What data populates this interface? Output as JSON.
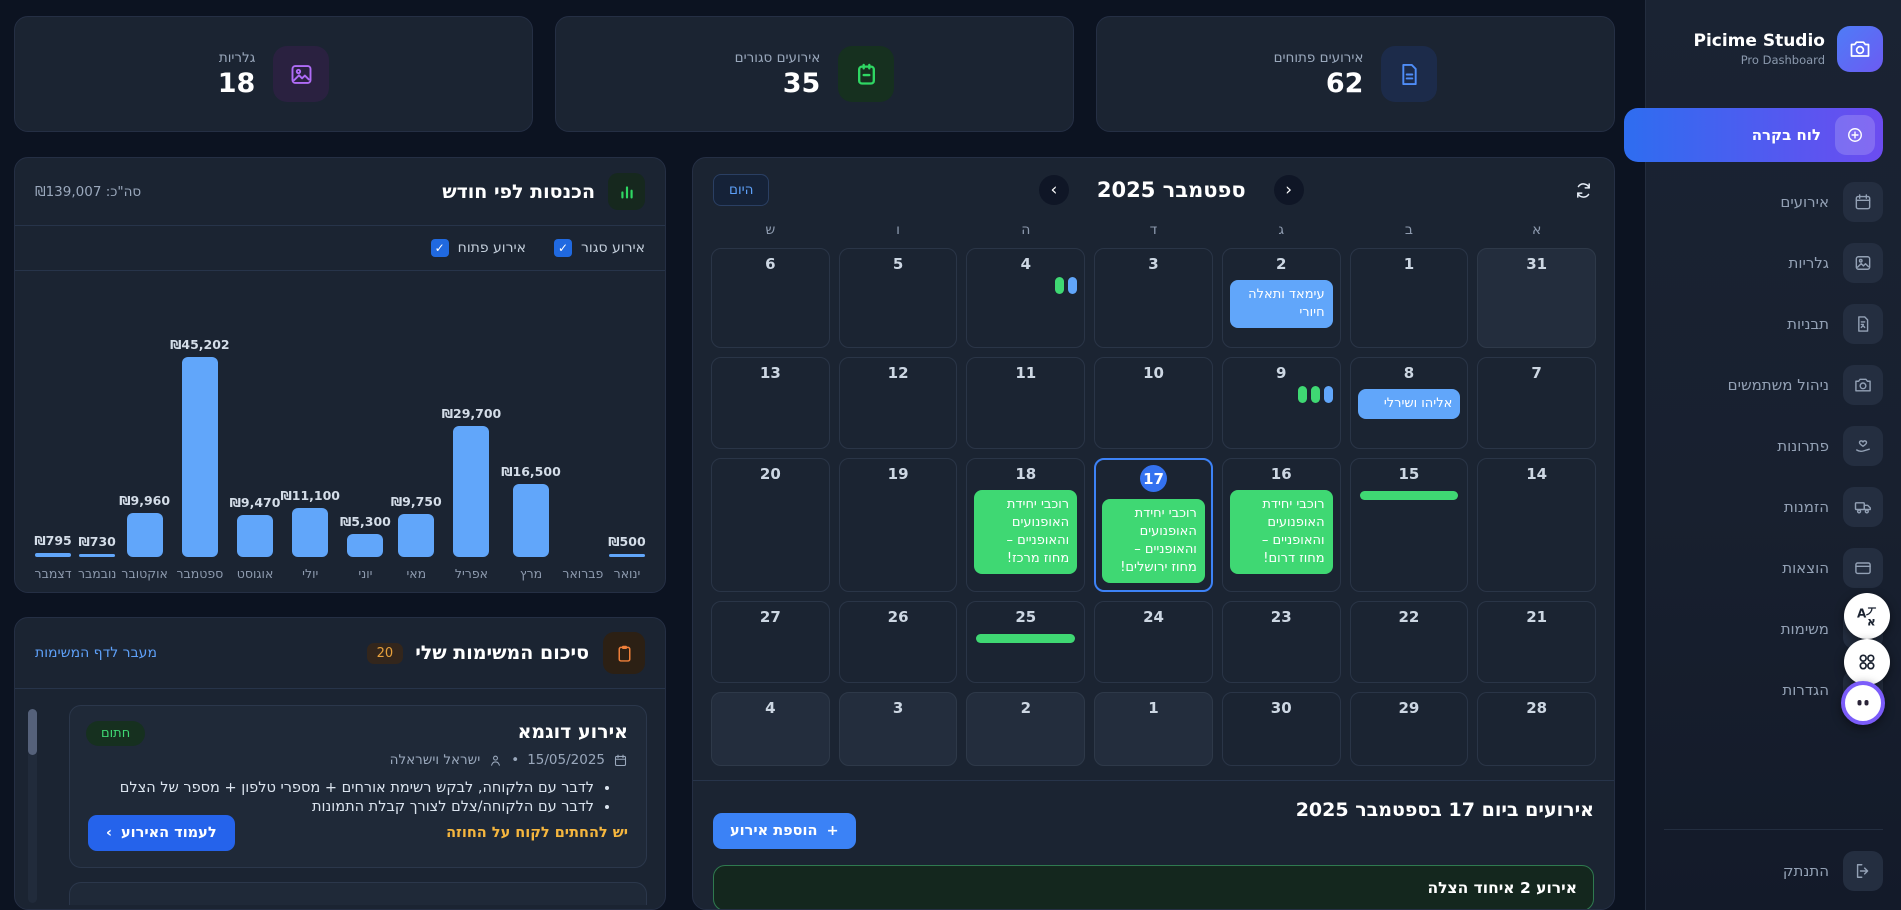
{
  "app": {
    "title": "Picime Studio",
    "subtitle": "Pro Dashboard"
  },
  "stats": [
    {
      "key": "open-events",
      "label": "אירועים פתוחים",
      "value": "62",
      "icon": "document",
      "color": "blue"
    },
    {
      "key": "closed-events",
      "label": "אירועים סגורים",
      "value": "35",
      "icon": "calendarMinus",
      "color": "green"
    },
    {
      "key": "galleries",
      "label": "גלריות",
      "value": "18",
      "icon": "gallery",
      "color": "purple"
    }
  ],
  "chart_data": {
    "type": "bar",
    "title": "הכנסות לפי חודש",
    "total_label": "סה\"כ: ₪139,007",
    "categories": [
      "ינואר",
      "פברואר",
      "מרץ",
      "אפריל",
      "מאי",
      "יוני",
      "יולי",
      "אוגוסט",
      "ספטמבר",
      "אוקטובר",
      "נובמבר",
      "דצמבר"
    ],
    "values": [
      500,
      0,
      16500,
      29700,
      9750,
      5300,
      11100,
      9470,
      45202,
      9960,
      730,
      795
    ],
    "value_labels": [
      "₪500",
      "",
      "₪16,500",
      "₪29,700",
      "₪9,750",
      "₪5,300",
      "₪11,100",
      "₪9,470",
      "₪45,202",
      "₪9,960",
      "₪730",
      "₪795"
    ],
    "ylim": [
      0,
      45202
    ],
    "bar_color": "#61a6fa",
    "xlabel": "",
    "ylabel": "",
    "legend_position": "none",
    "filters": [
      {
        "label": "אירוע סגור",
        "checked": true
      },
      {
        "label": "אירוע פתוח",
        "checked": true
      }
    ]
  },
  "calendar": {
    "today_label": "היום",
    "month_title": "ספטמבר 2025",
    "weekdays": [
      "א",
      "ב",
      "ג",
      "ד",
      "ה",
      "ו",
      "ש"
    ],
    "weeks": [
      [
        {
          "day": "31",
          "muted": true
        },
        {
          "day": "1"
        },
        {
          "day": "2",
          "events": [
            {
              "label": "עימאד ותאלה חיורי",
              "color": "blue"
            }
          ]
        },
        {
          "day": "3"
        },
        {
          "day": "4",
          "dots": [
            "green",
            "blue"
          ]
        },
        {
          "day": "5"
        },
        {
          "day": "6"
        }
      ],
      [
        {
          "day": "7"
        },
        {
          "day": "8",
          "events": [
            {
              "label": "אליהו ושירלי",
              "color": "blue"
            }
          ]
        },
        {
          "day": "9",
          "dots": [
            "green",
            "green",
            "blue"
          ]
        },
        {
          "day": "10"
        },
        {
          "day": "11"
        },
        {
          "day": "12"
        },
        {
          "day": "13"
        }
      ],
      [
        {
          "day": "14"
        },
        {
          "day": "15",
          "bar": true
        },
        {
          "day": "16",
          "events": [
            {
              "label": "רוכבי יחידת האופנועים והאופניים – מחוז דרום!",
              "color": "green"
            }
          ]
        },
        {
          "day": "17",
          "selected": true,
          "events": [
            {
              "label": "רוכבי יחידת האופנועים והאופניים – מחוז ירושלים!",
              "color": "green"
            }
          ]
        },
        {
          "day": "18",
          "events": [
            {
              "label": "רוכבי יחידת האופנועים והאופניים – מחוז מרכז!",
              "color": "green"
            }
          ]
        },
        {
          "day": "19"
        },
        {
          "day": "20"
        }
      ],
      [
        {
          "day": "21"
        },
        {
          "day": "22"
        },
        {
          "day": "23"
        },
        {
          "day": "24"
        },
        {
          "day": "25",
          "bar": true
        },
        {
          "day": "26"
        },
        {
          "day": "27"
        }
      ],
      [
        {
          "day": "28"
        },
        {
          "day": "29"
        },
        {
          "day": "30"
        },
        {
          "day": "1",
          "muted": true
        },
        {
          "day": "2",
          "muted": true
        },
        {
          "day": "3",
          "muted": true
        },
        {
          "day": "4",
          "muted": true
        }
      ]
    ]
  },
  "events_day": {
    "title": "אירועים ביום 17 בספטמבר 2025",
    "add_button": "הוספת אירוע",
    "event_title": "אירוע 2 איחוד הצלה"
  },
  "tasks": {
    "title": "סיכום המשימות שלי",
    "count": "20",
    "link": "מעבר לדף המשימות",
    "items": [
      {
        "badge": "חתום",
        "title": "אירוע דוגמא",
        "date": "15/05/2025",
        "person": "ישראל וישראלה",
        "bullets": [
          "לדבר עם הלקוחה, לבקש רשימת אורחים + מספרי טלפון + מספר של הצלם",
          "לדבר עם הלקוחה/צלם לצורך קבלת התמונות"
        ],
        "warning": "יש להחתים לקוח על החוזה",
        "button": "לעמוד האירוע"
      }
    ]
  },
  "sidebar": {
    "items": [
      {
        "key": "dashboard",
        "label": "לוח בקרה",
        "icon": "dashboard",
        "active": true
      },
      {
        "key": "events",
        "label": "אירועים",
        "icon": "calendar"
      },
      {
        "key": "galleries",
        "label": "גלריות",
        "icon": "gallery"
      },
      {
        "key": "templates",
        "label": "תבניות",
        "icon": "templates"
      },
      {
        "key": "users",
        "label": "ניהול משתמשים",
        "icon": "camera"
      },
      {
        "key": "solutions",
        "label": "פתרונות",
        "icon": "solutions"
      },
      {
        "key": "orders",
        "label": "הזמנות",
        "icon": "orders"
      },
      {
        "key": "expenses",
        "label": "הוצאות",
        "icon": "expenses"
      },
      {
        "key": "tasks",
        "label": "משימות",
        "icon": "tasksIcon"
      },
      {
        "key": "settings",
        "label": "הגדרות",
        "icon": "settings"
      }
    ],
    "logout": "התנתק"
  },
  "icons": {
    "prev": "‹",
    "next": "›",
    "plus": "+",
    "forward": "‹",
    "check": "✓"
  }
}
